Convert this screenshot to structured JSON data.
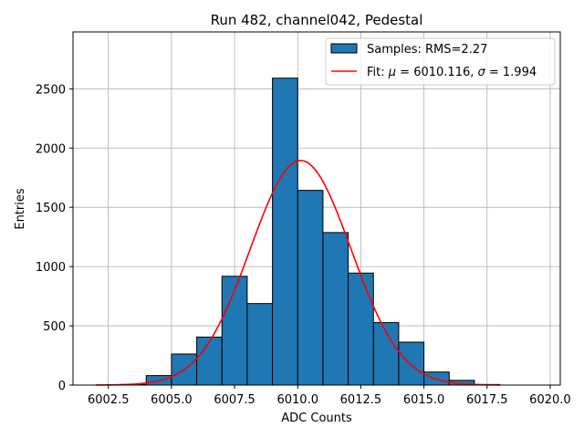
{
  "chart_data": {
    "type": "bar",
    "title": "Run 482, channel042, Pedestal",
    "xlabel": "ADC Counts",
    "ylabel": "Entries",
    "xlim": [
      6001.1,
      6020.4
    ],
    "ylim": [
      0,
      2980
    ],
    "grid": true,
    "legend_position": "top-right",
    "x_ticks": [
      6002.5,
      6005.0,
      6007.5,
      6010.0,
      6012.5,
      6015.0,
      6017.5,
      6020.0
    ],
    "x_tick_labels": [
      "6002.5",
      "6005.0",
      "6007.5",
      "6010.0",
      "6012.5",
      "6015.0",
      "6017.5",
      "6020.0"
    ],
    "y_ticks": [
      0,
      500,
      1000,
      1500,
      2000,
      2500
    ],
    "y_tick_labels": [
      "0",
      "500",
      "1000",
      "1500",
      "2000",
      "2500"
    ],
    "bin_width": 1,
    "bin_left_edges": [
      6003,
      6004,
      6005,
      6006,
      6007,
      6008,
      6009,
      6010,
      6011,
      6012,
      6013,
      6014,
      6015,
      6016,
      6017
    ],
    "values": [
      5,
      80,
      262,
      405,
      918,
      688,
      2590,
      1643,
      1287,
      945,
      527,
      362,
      110,
      40,
      5
    ],
    "bar_color": "#1f77b4",
    "bar_edge_color": "#000000",
    "fit": {
      "type": "gaussian",
      "mu": 6010.116,
      "sigma": 1.994,
      "peak": 1895,
      "x_range": [
        6002,
        6018
      ],
      "color": "#ff0000"
    },
    "legend": [
      {
        "label": "Samples: RMS=2.27",
        "kind": "patch",
        "color": "#1f77b4"
      },
      {
        "label_prefix": "Fit: ",
        "mu_symbol": "μ",
        "mu_text": " = 6010.116, ",
        "sigma_symbol": "σ",
        "sigma_text": " = 1.994",
        "kind": "line",
        "color": "#ff0000"
      }
    ]
  }
}
